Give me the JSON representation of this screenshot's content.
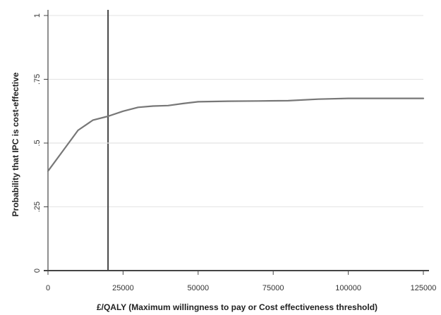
{
  "chart_data": {
    "type": "line",
    "title": "",
    "xlabel": "£/QALY (Maximum willingness to pay or Cost effectiveness threshold)",
    "ylabel": "Probability that IPC is cost-effective",
    "xlim": [
      0,
      125000
    ],
    "ylim": [
      0,
      1
    ],
    "xticks": [
      0,
      25000,
      50000,
      75000,
      100000,
      125000
    ],
    "xtick_labels": [
      "0",
      "25000",
      "50000",
      "75000",
      "100000",
      "125000"
    ],
    "yticks": [
      0,
      0.25,
      0.5,
      0.75,
      1
    ],
    "ytick_labels": [
      "0",
      ".25",
      ".5",
      ".75",
      "1"
    ],
    "grid": true,
    "legend": "none",
    "reference_lines": [
      {
        "axis": "x",
        "value": 20000
      },
      {
        "axis": "y",
        "value": 0.5
      }
    ],
    "series": [
      {
        "x": [
          0,
          5000,
          10000,
          15000,
          20000,
          25000,
          30000,
          35000,
          40000,
          45000,
          50000,
          60000,
          70000,
          80000,
          90000,
          100000,
          110000,
          125000
        ],
        "y": [
          0.39,
          0.47,
          0.55,
          0.59,
          0.605,
          0.625,
          0.64,
          0.645,
          0.647,
          0.655,
          0.662,
          0.664,
          0.665,
          0.666,
          0.672,
          0.675,
          0.675,
          0.675
        ]
      }
    ],
    "colors": {
      "line": "#777777",
      "axis": "#444444",
      "refline": "#444444",
      "grid": "#e3e3e3"
    }
  }
}
